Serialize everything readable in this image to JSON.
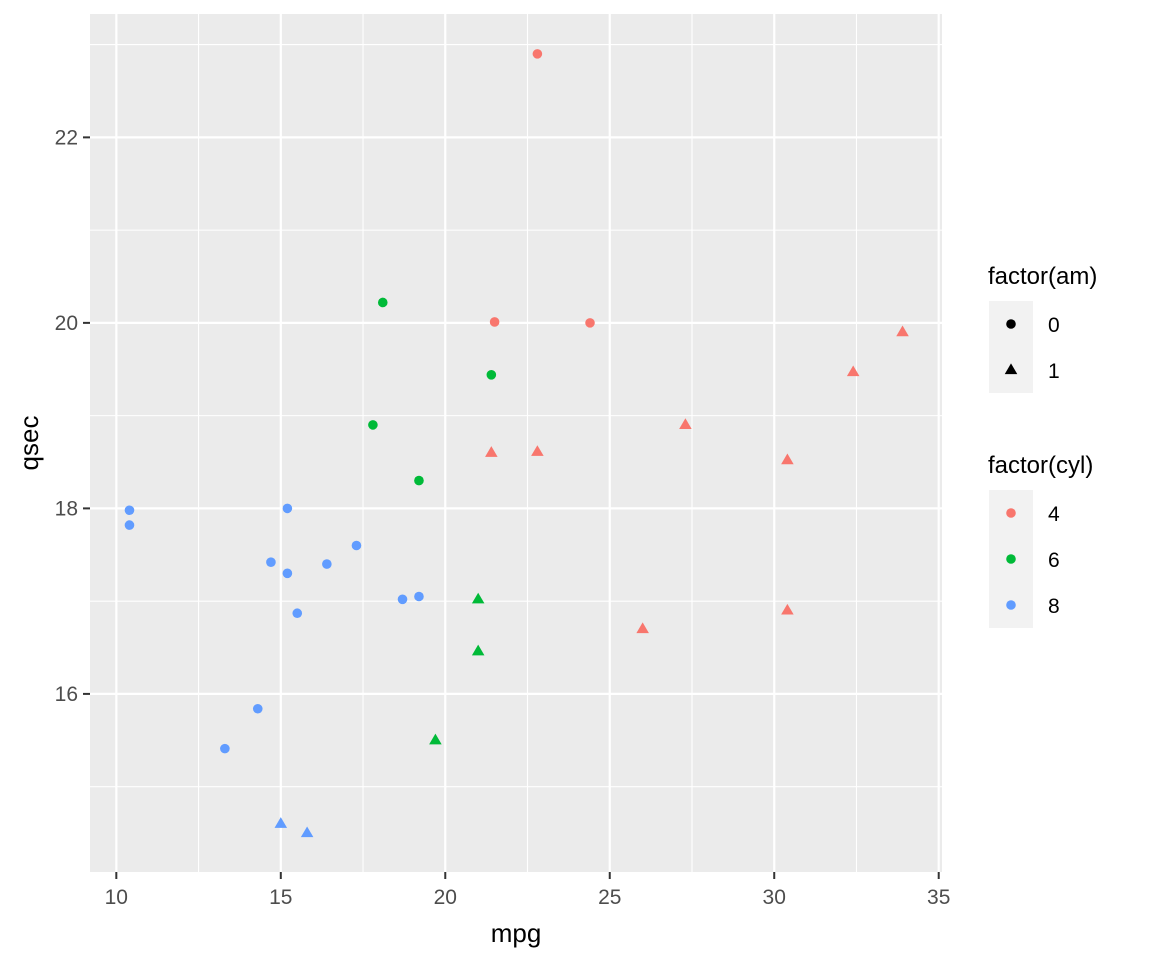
{
  "chart_data": {
    "type": "scatter",
    "xlabel": "mpg",
    "ylabel": "qsec",
    "xlim": [
      9.2,
      35.1
    ],
    "ylim": [
      14.08,
      23.33
    ],
    "x_ticks": [
      10,
      15,
      20,
      25,
      30,
      35
    ],
    "x_tick_labels": [
      "10",
      "15",
      "20",
      "25",
      "30",
      "35"
    ],
    "y_ticks": [
      16,
      18,
      20,
      22
    ],
    "y_tick_labels": [
      "16",
      "18",
      "20",
      "22"
    ],
    "grid": true,
    "legend_position": "right",
    "colors": {
      "4": "#F8766D",
      "6": "#00BA38",
      "8": "#619CFF"
    },
    "legends": [
      {
        "title": "factor(am)",
        "kind": "shape",
        "entries": [
          {
            "label": "0",
            "shape": "circle"
          },
          {
            "label": "1",
            "shape": "triangle"
          }
        ]
      },
      {
        "title": "factor(cyl)",
        "kind": "color",
        "entries": [
          {
            "label": "4",
            "color": "#F8766D"
          },
          {
            "label": "6",
            "color": "#00BA38"
          },
          {
            "label": "8",
            "color": "#619CFF"
          }
        ]
      }
    ],
    "points": [
      {
        "mpg": 21.0,
        "qsec": 16.46,
        "cyl": "6",
        "am": "1"
      },
      {
        "mpg": 21.0,
        "qsec": 17.02,
        "cyl": "6",
        "am": "1"
      },
      {
        "mpg": 22.8,
        "qsec": 18.61,
        "cyl": "4",
        "am": "1"
      },
      {
        "mpg": 21.4,
        "qsec": 19.44,
        "cyl": "6",
        "am": "0"
      },
      {
        "mpg": 18.7,
        "qsec": 17.02,
        "cyl": "8",
        "am": "0"
      },
      {
        "mpg": 18.1,
        "qsec": 20.22,
        "cyl": "6",
        "am": "0"
      },
      {
        "mpg": 14.3,
        "qsec": 15.84,
        "cyl": "8",
        "am": "0"
      },
      {
        "mpg": 24.4,
        "qsec": 20.0,
        "cyl": "4",
        "am": "0"
      },
      {
        "mpg": 22.8,
        "qsec": 22.9,
        "cyl": "4",
        "am": "0"
      },
      {
        "mpg": 19.2,
        "qsec": 18.3,
        "cyl": "6",
        "am": "0"
      },
      {
        "mpg": 17.8,
        "qsec": 18.9,
        "cyl": "6",
        "am": "0"
      },
      {
        "mpg": 16.4,
        "qsec": 17.4,
        "cyl": "8",
        "am": "0"
      },
      {
        "mpg": 17.3,
        "qsec": 17.6,
        "cyl": "8",
        "am": "0"
      },
      {
        "mpg": 15.2,
        "qsec": 18.0,
        "cyl": "8",
        "am": "0"
      },
      {
        "mpg": 10.4,
        "qsec": 17.98,
        "cyl": "8",
        "am": "0"
      },
      {
        "mpg": 10.4,
        "qsec": 17.82,
        "cyl": "8",
        "am": "0"
      },
      {
        "mpg": 14.7,
        "qsec": 17.42,
        "cyl": "8",
        "am": "0"
      },
      {
        "mpg": 32.4,
        "qsec": 19.47,
        "cyl": "4",
        "am": "1"
      },
      {
        "mpg": 30.4,
        "qsec": 18.52,
        "cyl": "4",
        "am": "1"
      },
      {
        "mpg": 33.9,
        "qsec": 19.9,
        "cyl": "4",
        "am": "1"
      },
      {
        "mpg": 21.5,
        "qsec": 20.01,
        "cyl": "4",
        "am": "0"
      },
      {
        "mpg": 15.5,
        "qsec": 16.87,
        "cyl": "8",
        "am": "0"
      },
      {
        "mpg": 15.2,
        "qsec": 17.3,
        "cyl": "8",
        "am": "0"
      },
      {
        "mpg": 13.3,
        "qsec": 15.41,
        "cyl": "8",
        "am": "0"
      },
      {
        "mpg": 19.2,
        "qsec": 17.05,
        "cyl": "8",
        "am": "0"
      },
      {
        "mpg": 27.3,
        "qsec": 18.9,
        "cyl": "4",
        "am": "1"
      },
      {
        "mpg": 26.0,
        "qsec": 16.7,
        "cyl": "4",
        "am": "1"
      },
      {
        "mpg": 30.4,
        "qsec": 16.9,
        "cyl": "4",
        "am": "1"
      },
      {
        "mpg": 15.8,
        "qsec": 14.5,
        "cyl": "8",
        "am": "1"
      },
      {
        "mpg": 19.7,
        "qsec": 15.5,
        "cyl": "6",
        "am": "1"
      },
      {
        "mpg": 15.0,
        "qsec": 14.6,
        "cyl": "8",
        "am": "1"
      },
      {
        "mpg": 21.4,
        "qsec": 18.6,
        "cyl": "4",
        "am": "1"
      }
    ]
  }
}
